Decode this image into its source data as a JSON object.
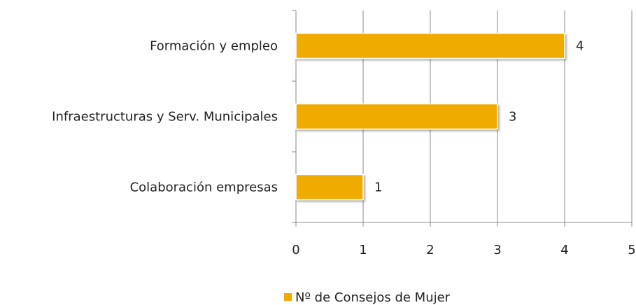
{
  "chart_data": {
    "type": "hbar",
    "categories": [
      "Formación y empleo",
      "Infraestructuras y Serv. Municipales",
      "Colaboración empresas"
    ],
    "series": [
      {
        "name": "Nº de Consejos de Mujer",
        "color": "#f0ab00",
        "values": [
          4,
          3,
          1
        ]
      }
    ],
    "xlim": [
      0,
      5
    ],
    "xticks": [
      0,
      1,
      2,
      3,
      4,
      5
    ],
    "grid": true,
    "legend": "bottom"
  }
}
